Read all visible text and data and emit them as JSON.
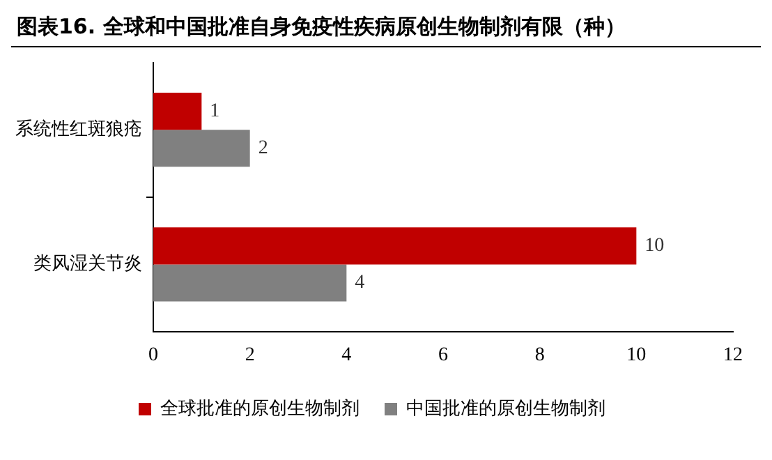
{
  "chart_data": {
    "type": "bar",
    "orientation": "horizontal",
    "title": "图表16. 全球和中国批准自身免疫性疾病原创生物制剂有限（种）",
    "categories": [
      "系统性红斑狼疮",
      "类风湿关节炎"
    ],
    "series": [
      {
        "name": "全球批准的原创生物制剂",
        "color": "#c00000",
        "values": [
          1,
          10
        ]
      },
      {
        "name": "中国批准的原创生物制剂",
        "color": "#808080",
        "values": [
          2,
          4
        ]
      }
    ],
    "xlim": [
      0,
      12
    ],
    "xticks": [
      0,
      2,
      4,
      6,
      8,
      10,
      12
    ],
    "grid": false,
    "legend": "bottom",
    "data_labels": true
  }
}
